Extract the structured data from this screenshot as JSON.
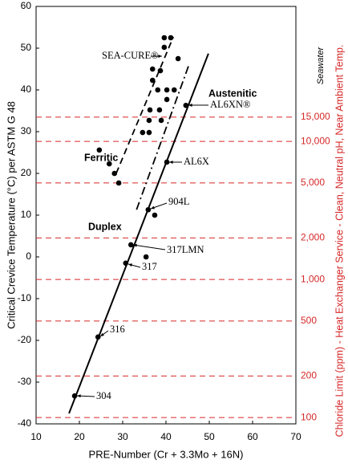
{
  "chart_data": {
    "type": "scatter",
    "x_label": "PRE-Number (Cr + 3.3Mo + 16N)",
    "y_label": "Critical Crevice Temperature (°C) per ASTM G 48",
    "y2_label": "Chloride Limit (ppm) - Heat Exchanger Service - Clean, Neutral pH, Near Ambient Temp.",
    "xlim": [
      10,
      70
    ],
    "xticks": [
      10,
      20,
      30,
      40,
      50,
      60,
      70
    ],
    "ylim": [
      -40,
      60
    ],
    "yticks": [
      -40,
      -30,
      -20,
      -10,
      0,
      10,
      20,
      30,
      40,
      50,
      60
    ],
    "y2lim": [
      90,
      95000
    ],
    "y2log": true,
    "y2color": "#d62828",
    "y2ticks": [
      100,
      200,
      500,
      {
        "value": 1000,
        "label": "1,000"
      },
      {
        "value": 2000,
        "label": "2,000"
      },
      {
        "value": 5000,
        "label": "5,000"
      },
      {
        "value": 10000,
        "label": "10,000"
      },
      {
        "value": 15000,
        "label": "15,000"
      }
    ],
    "series": [
      {
        "color": "#000000",
        "x": [
          18.9,
          24.3,
          30.7,
          31.9,
          35.4,
          35.9,
          37.4,
          40.2,
          44.6,
          29.1,
          24.6,
          26.9,
          28.1,
          34.6,
          36.1,
          36.1,
          36.3,
          38.5,
          38.9,
          40.2,
          38.1,
          40.2,
          41.9,
          36.9,
          38.7,
          36.9,
          42.8,
          39.6,
          39.6,
          41.1
        ],
        "values": [
          -33.3,
          -19.2,
          -1.5,
          2.9,
          0,
          11.3,
          10,
          22.7,
          36.3,
          17.7,
          25.6,
          22.3,
          20,
          29.8,
          29.8,
          32.7,
          35.2,
          35.2,
          32.7,
          37.7,
          40,
          40,
          40,
          42.3,
          44.6,
          45,
          47.5,
          50.2,
          52.5,
          52.5
        ]
      }
    ],
    "lines": [
      {
        "x": [
          17.6,
          49.8
        ],
        "values": [
          -37.5,
          48.7
        ],
        "style": "solid"
      },
      {
        "x": [
          28.5,
          41.7
        ],
        "values": [
          20,
          52.7
        ],
        "style": "dashed"
      },
      {
        "x": [
          33.2,
          45.3
        ],
        "values": [
          11.3,
          46
        ],
        "style": "dashdot"
      }
    ],
    "annotations": [
      "SEA-CURE®",
      "Austenitic",
      "AL6XN®",
      "Ferritic",
      "AL6X",
      "904L",
      "Duplex",
      "317LMN",
      "317",
      "316",
      "304",
      "Seawater"
    ]
  }
}
